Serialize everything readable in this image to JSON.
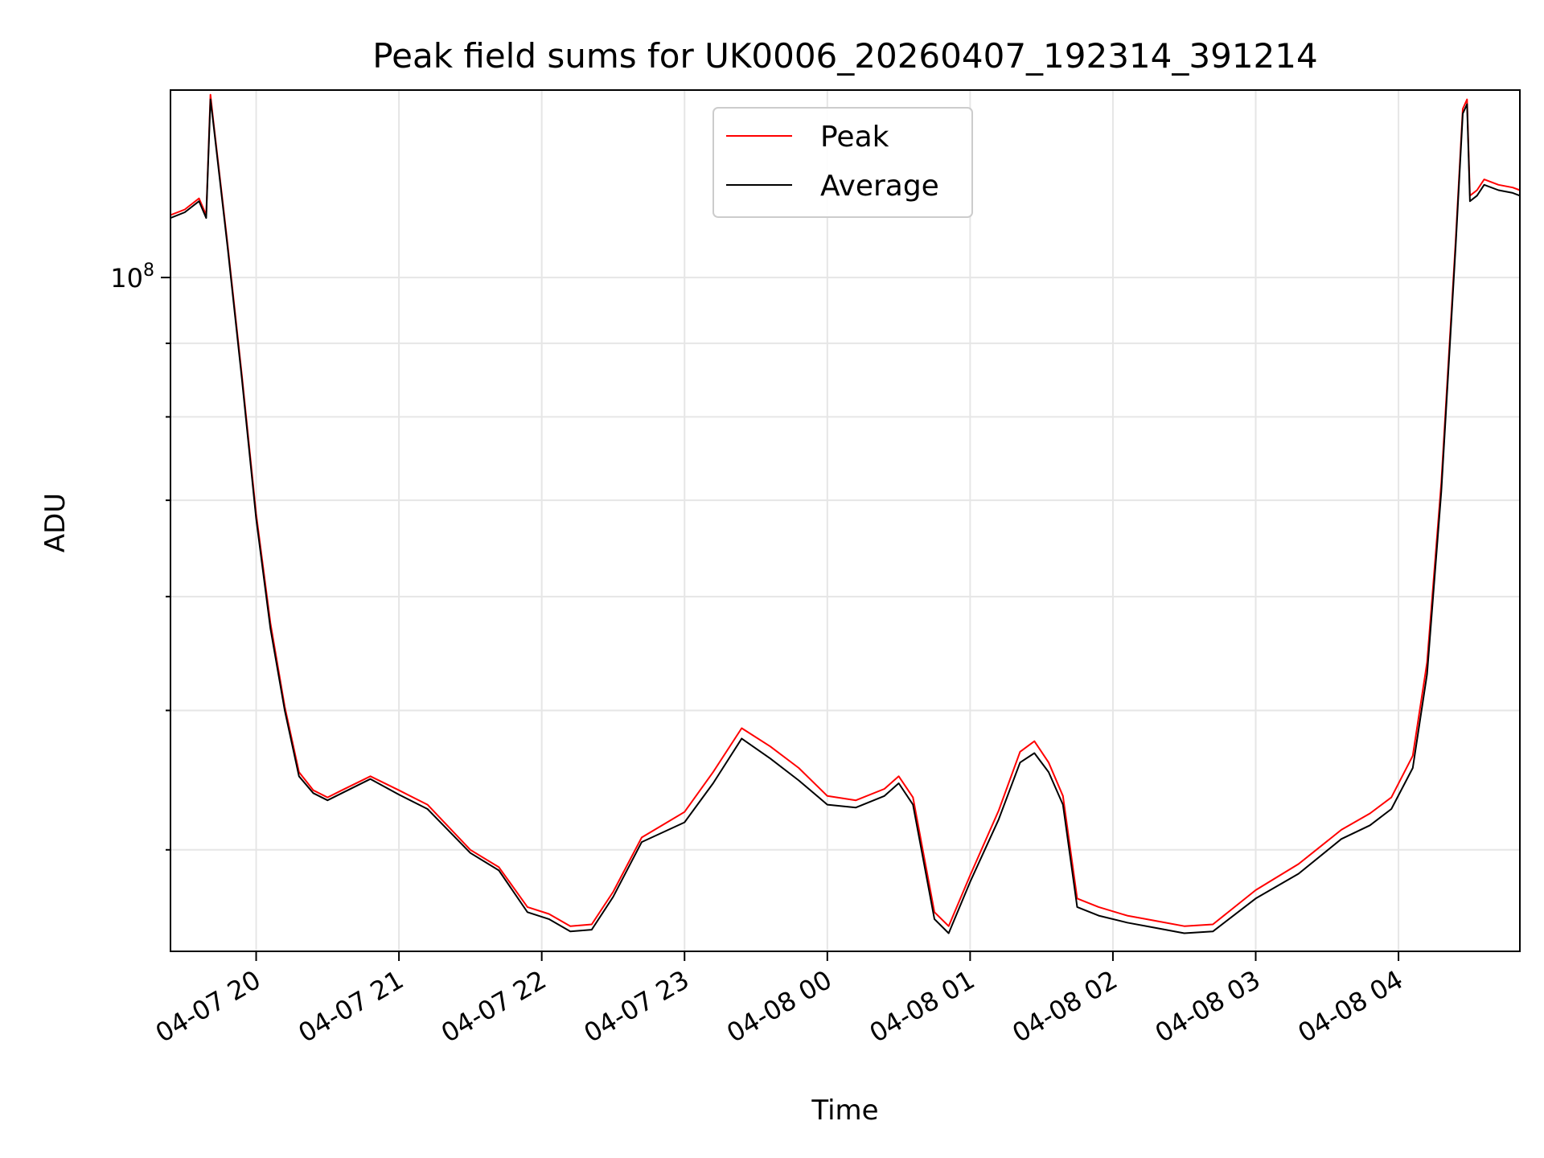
{
  "chart_data": {
    "type": "line",
    "title": "Peak field sums for UK0006_20260407_192314_391214",
    "xlabel": "Time",
    "ylabel": "ADU",
    "yscale": "log",
    "ylim": [
      34000000,
      135000000
    ],
    "xlim_hours": [
      19.4,
      28.85
    ],
    "x_ticks": [
      {
        "hour": 20,
        "label": "04-07 20"
      },
      {
        "hour": 21,
        "label": "04-07 21"
      },
      {
        "hour": 22,
        "label": "04-07 22"
      },
      {
        "hour": 23,
        "label": "04-07 23"
      },
      {
        "hour": 24,
        "label": "04-08 00"
      },
      {
        "hour": 25,
        "label": "04-08 01"
      },
      {
        "hour": 26,
        "label": "04-08 02"
      },
      {
        "hour": 27,
        "label": "04-08 03"
      },
      {
        "hour": 28,
        "label": "04-08 04"
      }
    ],
    "y_major_ticks": [
      {
        "value": 100000000,
        "base": "10",
        "exp": "8"
      }
    ],
    "y_minor_ticks": [
      40000000,
      50000000,
      60000000,
      70000000,
      80000000,
      90000000
    ],
    "grid": true,
    "legend_position": "upper-center",
    "series": [
      {
        "name": "Average",
        "color": "#000000",
        "x_hours": [
          19.4,
          19.5,
          19.55,
          19.6,
          19.65,
          19.68,
          19.7,
          19.8,
          19.9,
          20.0,
          20.1,
          20.2,
          20.3,
          20.4,
          20.5,
          20.6,
          20.8,
          21.0,
          21.2,
          21.5,
          21.7,
          21.9,
          22.05,
          22.2,
          22.35,
          22.5,
          22.7,
          23.0,
          23.2,
          23.4,
          23.6,
          23.8,
          24.0,
          24.2,
          24.4,
          24.5,
          24.6,
          24.75,
          24.85,
          25.0,
          25.2,
          25.35,
          25.45,
          25.55,
          25.65,
          25.75,
          25.9,
          26.1,
          26.3,
          26.5,
          26.7,
          27.0,
          27.3,
          27.6,
          27.8,
          27.95,
          28.1,
          28.2,
          28.3,
          28.4,
          28.45,
          28.48,
          28.5,
          28.55,
          28.6,
          28.7,
          28.8,
          28.85
        ],
        "y": [
          110000000,
          111000000,
          112000000,
          113000000,
          110000000,
          133000000,
          128000000,
          105000000,
          85000000,
          68000000,
          57000000,
          50000000,
          45000000,
          43800000,
          43300000,
          43800000,
          44800000,
          43700000,
          42700000,
          39800000,
          38700000,
          36200000,
          35800000,
          35100000,
          35200000,
          37100000,
          40500000,
          41800000,
          44500000,
          47800000,
          46300000,
          44700000,
          43000000,
          42800000,
          43600000,
          44500000,
          43000000,
          35800000,
          35000000,
          38000000,
          42000000,
          46000000,
          46700000,
          45300000,
          43000000,
          36500000,
          36000000,
          35600000,
          35300000,
          35000000,
          35100000,
          37000000,
          38500000,
          40700000,
          41600000,
          42700000,
          45600000,
          53000000,
          71000000,
          105000000,
          130000000,
          132000000,
          113000000,
          114000000,
          116000000,
          115000000,
          114500000,
          114000000
        ]
      },
      {
        "name": "Peak",
        "color": "#ff0000",
        "x_hours": [
          19.4,
          19.5,
          19.55,
          19.6,
          19.65,
          19.68,
          19.7,
          19.8,
          19.9,
          20.0,
          20.1,
          20.2,
          20.3,
          20.4,
          20.5,
          20.6,
          20.8,
          21.0,
          21.2,
          21.5,
          21.7,
          21.9,
          22.05,
          22.2,
          22.35,
          22.5,
          22.7,
          23.0,
          23.2,
          23.4,
          23.6,
          23.8,
          24.0,
          24.2,
          24.4,
          24.5,
          24.6,
          24.75,
          24.85,
          25.0,
          25.2,
          25.35,
          25.45,
          25.55,
          25.65,
          25.75,
          25.9,
          26.1,
          26.3,
          26.5,
          26.7,
          27.0,
          27.3,
          27.6,
          27.8,
          27.95,
          28.1,
          28.2,
          28.3,
          28.4,
          28.45,
          28.48,
          28.5,
          28.55,
          28.6,
          28.7,
          28.8,
          28.85
        ],
        "y": [
          110500000,
          111500000,
          112500000,
          113500000,
          110500000,
          134000000,
          128500000,
          105500000,
          85500000,
          68500000,
          57500000,
          50300000,
          45300000,
          44000000,
          43500000,
          44000000,
          45000000,
          44000000,
          43000000,
          40000000,
          38900000,
          36500000,
          36100000,
          35400000,
          35500000,
          37400000,
          40800000,
          42500000,
          45300000,
          48600000,
          47200000,
          45600000,
          43600000,
          43300000,
          44100000,
          45000000,
          43500000,
          36200000,
          35400000,
          38400000,
          42600000,
          46800000,
          47600000,
          46000000,
          43600000,
          37000000,
          36500000,
          36000000,
          35700000,
          35400000,
          35500000,
          37500000,
          39100000,
          41300000,
          42400000,
          43500000,
          46500000,
          54000000,
          72000000,
          106000000,
          131000000,
          133000000,
          114000000,
          115000000,
          117000000,
          116000000,
          115500000,
          115000000
        ]
      }
    ]
  }
}
